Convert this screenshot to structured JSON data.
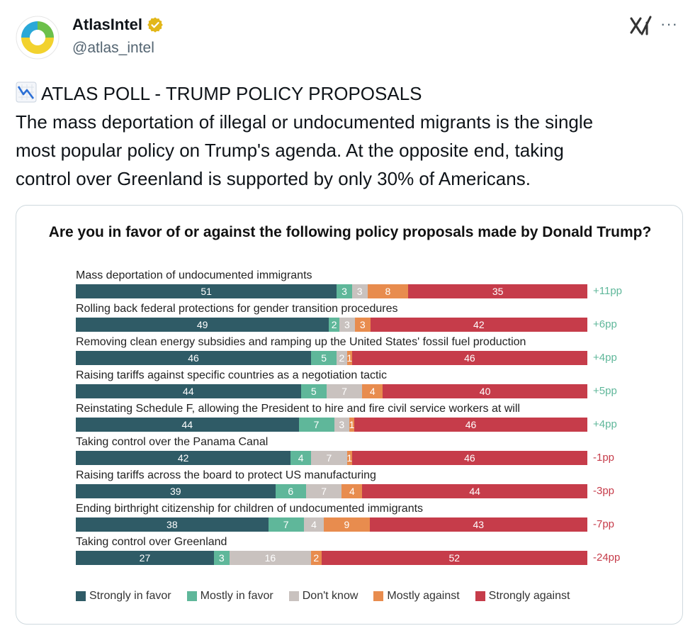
{
  "tweet": {
    "author_name": "AtlasIntel",
    "author_handle": "@atlas_intel",
    "text_lines": [
      "ATLAS POLL - TRUMP POLICY PROPOSALS",
      "The mass deportation of illegal or undocumented migrants is the single",
      "most popular policy on Trump's agenda. At the opposite end, taking",
      "control over Greenland is supported by only 30% of Americans."
    ],
    "icons": {
      "avatar": "atlasintel-logo",
      "verified": "verified-badge-icon",
      "grok": "grok-icon",
      "more": "more-icon",
      "emoji": "chart-decreasing-icon"
    },
    "more_glyph": "···"
  },
  "chart_data": {
    "type": "bar",
    "orientation": "horizontal-stacked",
    "title": "Are you in favor of or against the following policy proposals made by Donald Trump?",
    "legend_placement": "bottom",
    "series_names": [
      "Strongly in favor",
      "Mostly in favor",
      "Don't know",
      "Mostly against",
      "Strongly against"
    ],
    "series_colors": [
      "#2f5b66",
      "#5fb79a",
      "#c9c2bf",
      "#e88c4e",
      "#c63c4a"
    ],
    "net_colors": {
      "positive": "#5fb79a",
      "negative": "#c63c4a"
    },
    "categories": [
      "Mass deportation of undocumented immigrants",
      "Rolling back federal protections for gender transition procedures",
      "Removing clean energy subsidies and ramping up the United States' fossil fuel production",
      "Raising tariffs against specific countries as a negotiation tactic",
      "Reinstating Schedule F, allowing the President to hire and fire civil service workers at will",
      "Taking control over the Panama Canal",
      "Raising tariffs across the board to protect US manufacturing",
      "Ending birthright citizenship for children of undocumented immigrants",
      "Taking control over Greenland"
    ],
    "values": [
      [
        51,
        3,
        3,
        8,
        35
      ],
      [
        49,
        2,
        3,
        3,
        42
      ],
      [
        46,
        5,
        2,
        1,
        46
      ],
      [
        44,
        5,
        7,
        4,
        40
      ],
      [
        44,
        7,
        3,
        1,
        46
      ],
      [
        42,
        4,
        7,
        1,
        46
      ],
      [
        39,
        6,
        7,
        4,
        44
      ],
      [
        38,
        7,
        4,
        9,
        43
      ],
      [
        27,
        3,
        16,
        2,
        52
      ]
    ],
    "net": [
      "+11pp",
      "+6pp",
      "+4pp",
      "+5pp",
      "+4pp",
      "-1pp",
      "-3pp",
      "-7pp",
      "-24pp"
    ]
  }
}
